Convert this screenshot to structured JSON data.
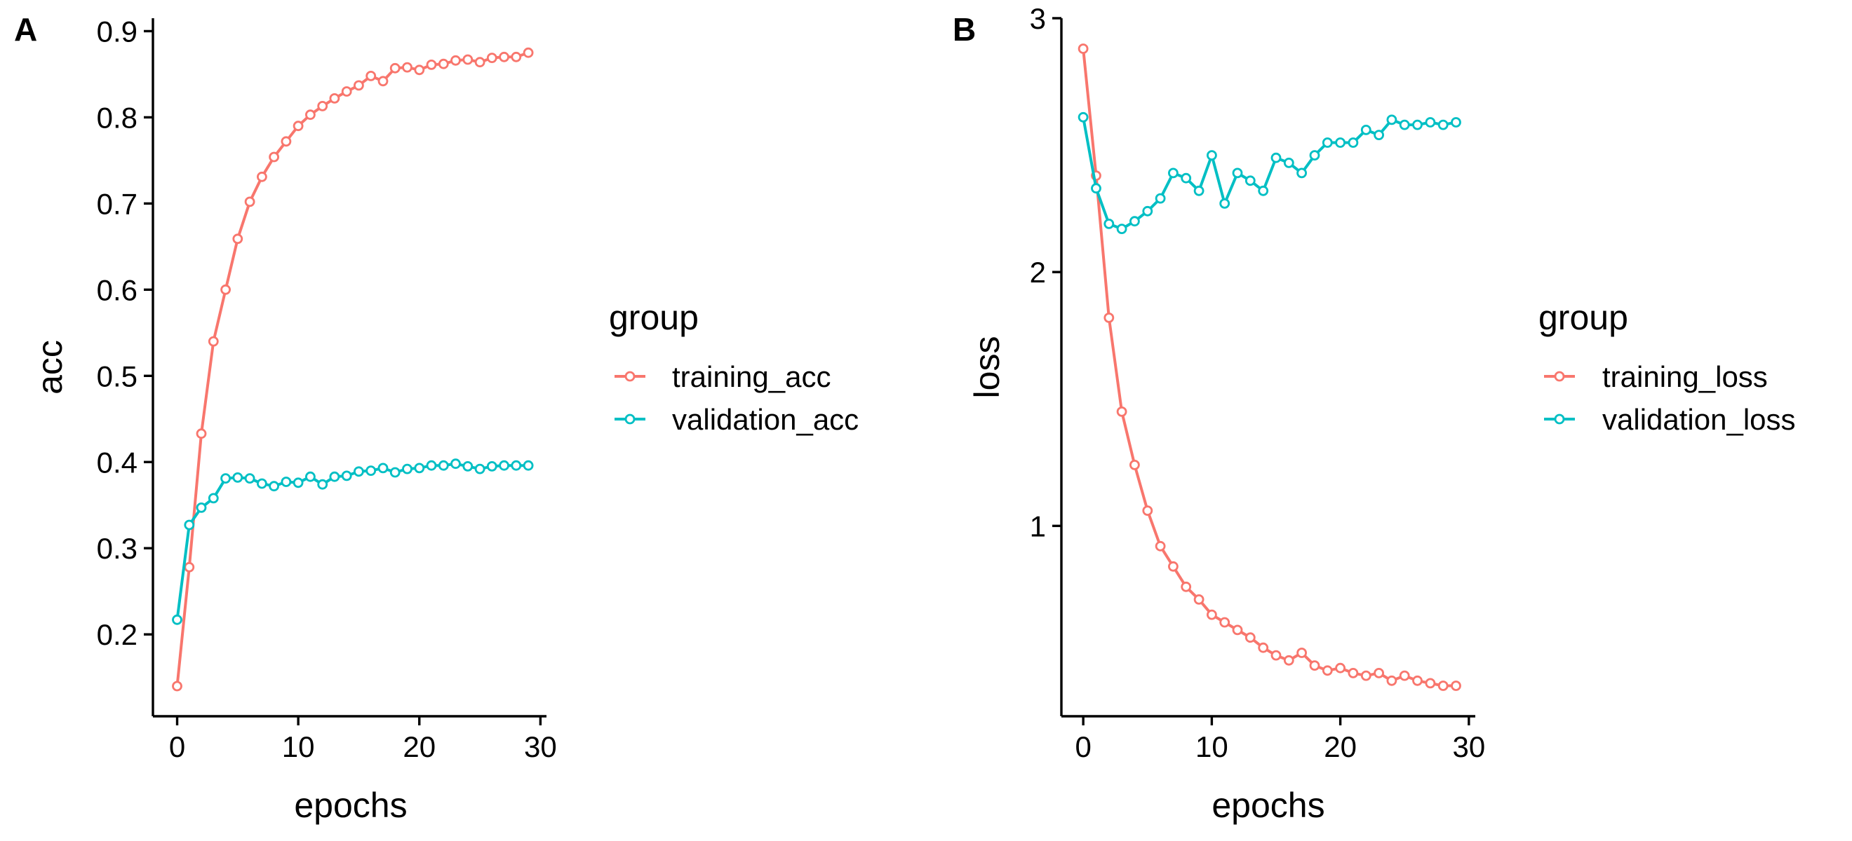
{
  "chart_data": [
    {
      "panel_label": "A",
      "type": "line",
      "xlabel": "epochs",
      "ylabel": "acc",
      "xlim": [
        -2,
        30.5
      ],
      "ylim": [
        0.105,
        0.915
      ],
      "xticks": [
        0,
        10,
        20,
        30
      ],
      "xtick_labels": [
        "0",
        "10",
        "20",
        "30"
      ],
      "yticks": [
        0.2,
        0.3,
        0.4,
        0.5,
        0.6,
        0.7,
        0.8,
        0.9
      ],
      "ytick_labels": [
        "0.2",
        "0.3",
        "0.4",
        "0.5",
        "0.6",
        "0.7",
        "0.8",
        "0.9"
      ],
      "grid": false,
      "legend": {
        "title": "group",
        "position": "right"
      },
      "x": [
        0,
        1,
        2,
        3,
        4,
        5,
        6,
        7,
        8,
        9,
        10,
        11,
        12,
        13,
        14,
        15,
        16,
        17,
        18,
        19,
        20,
        21,
        22,
        23,
        24,
        25,
        26,
        27,
        28,
        29
      ],
      "series": [
        {
          "name": "training_acc",
          "color": "#F8766D",
          "values": [
            0.14,
            0.278,
            0.433,
            0.54,
            0.6,
            0.659,
            0.702,
            0.731,
            0.754,
            0.772,
            0.79,
            0.803,
            0.813,
            0.822,
            0.83,
            0.837,
            0.848,
            0.842,
            0.857,
            0.858,
            0.855,
            0.861,
            0.862,
            0.866,
            0.867,
            0.864,
            0.869,
            0.87,
            0.87,
            0.875
          ]
        },
        {
          "name": "validation_acc",
          "color": "#00BFC4",
          "values": [
            0.217,
            0.327,
            0.347,
            0.358,
            0.381,
            0.382,
            0.381,
            0.375,
            0.372,
            0.377,
            0.376,
            0.383,
            0.374,
            0.383,
            0.384,
            0.389,
            0.39,
            0.393,
            0.388,
            0.392,
            0.393,
            0.396,
            0.396,
            0.398,
            0.395,
            0.392,
            0.395,
            0.396,
            0.396,
            0.396
          ]
        }
      ]
    },
    {
      "panel_label": "B",
      "type": "line",
      "xlabel": "epochs",
      "ylabel": "loss",
      "xlim": [
        -1.7,
        30.5
      ],
      "ylim": [
        0.25,
        3.0
      ],
      "xticks": [
        0,
        10,
        20,
        30
      ],
      "xtick_labels": [
        "0",
        "10",
        "20",
        "30"
      ],
      "yticks": [
        1,
        2,
        3
      ],
      "ytick_labels": [
        "1",
        "2",
        "3"
      ],
      "grid": false,
      "legend": {
        "title": "group",
        "position": "right"
      },
      "x": [
        0,
        1,
        2,
        3,
        4,
        5,
        6,
        7,
        8,
        9,
        10,
        11,
        12,
        13,
        14,
        15,
        16,
        17,
        18,
        19,
        20,
        21,
        22,
        23,
        24,
        25,
        26,
        27,
        28,
        29
      ],
      "series": [
        {
          "name": "training_loss",
          "color": "#F8766D",
          "values": [
            2.88,
            2.38,
            1.82,
            1.45,
            1.24,
            1.06,
            0.92,
            0.84,
            0.76,
            0.71,
            0.65,
            0.62,
            0.59,
            0.56,
            0.52,
            0.49,
            0.47,
            0.5,
            0.45,
            0.43,
            0.44,
            0.42,
            0.41,
            0.42,
            0.39,
            0.41,
            0.39,
            0.38,
            0.37,
            0.37
          ]
        },
        {
          "name": "validation_loss",
          "color": "#00BFC4",
          "values": [
            2.61,
            2.33,
            2.19,
            2.17,
            2.2,
            2.24,
            2.29,
            2.39,
            2.37,
            2.32,
            2.46,
            2.27,
            2.39,
            2.36,
            2.32,
            2.45,
            2.43,
            2.39,
            2.46,
            2.51,
            2.51,
            2.51,
            2.56,
            2.54,
            2.6,
            2.58,
            2.58,
            2.59,
            2.58,
            2.59
          ]
        }
      ]
    }
  ]
}
